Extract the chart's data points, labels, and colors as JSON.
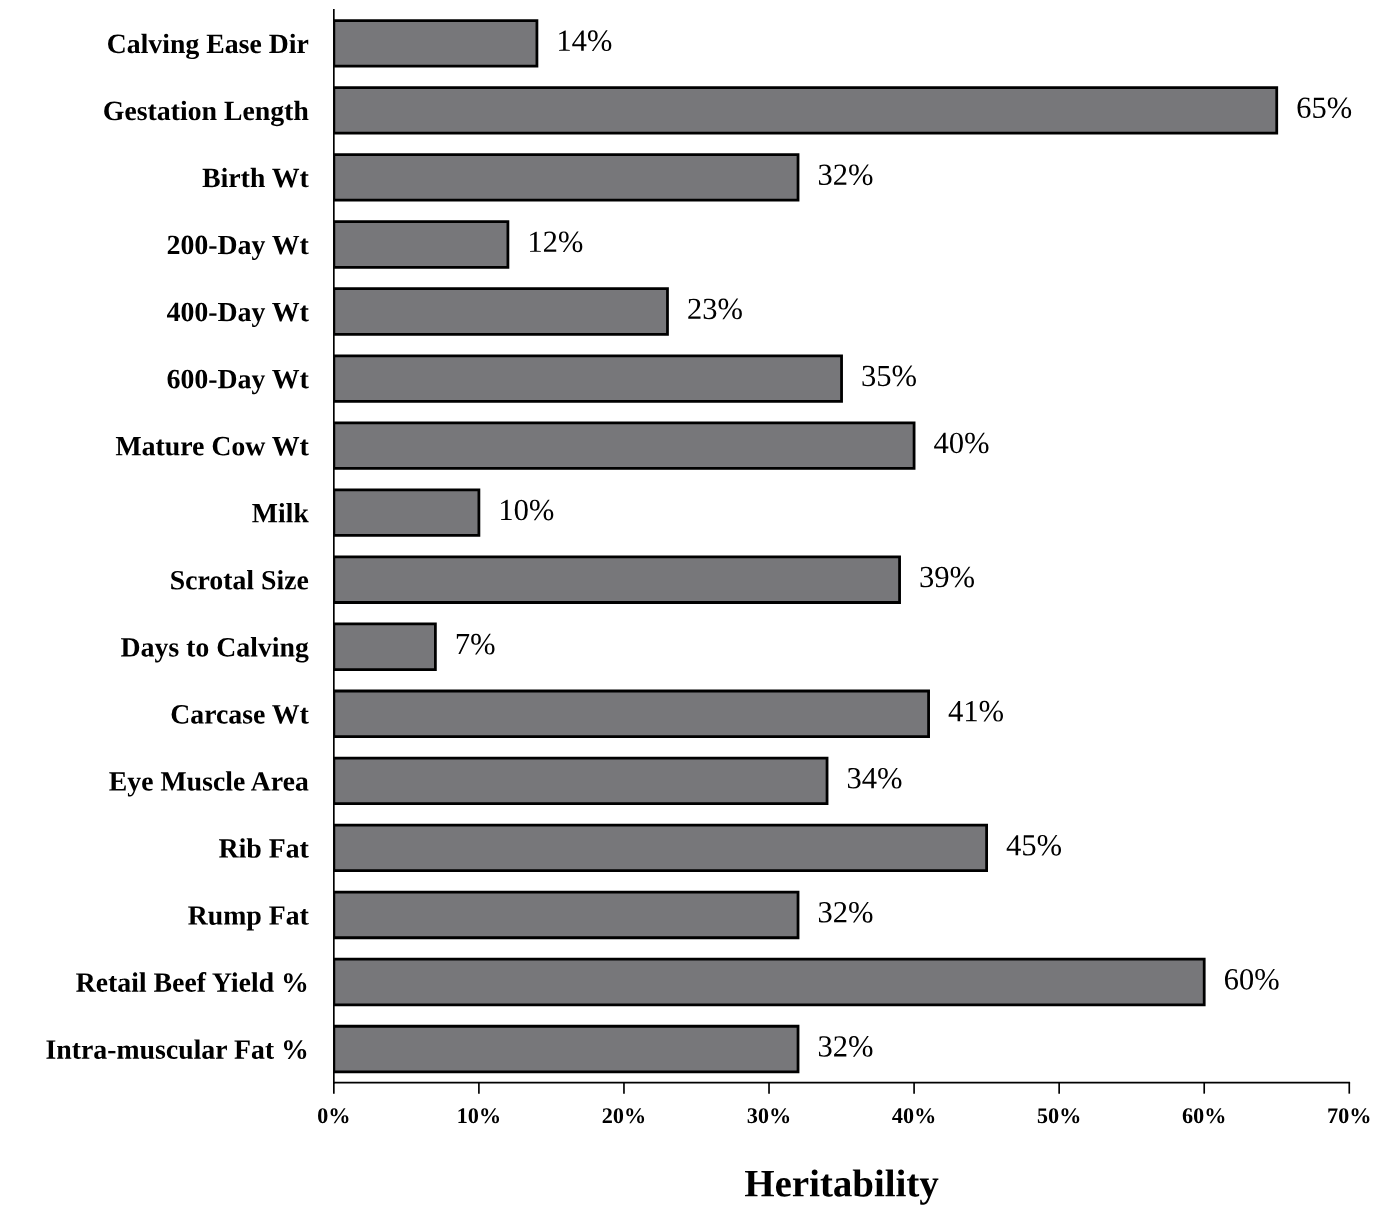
{
  "chart_data": {
    "type": "bar",
    "orientation": "horizontal",
    "xlabel": "Heritability",
    "categories": [
      "Calving Ease Dir",
      "Gestation Length",
      "Birth Wt",
      "200-Day Wt",
      "400-Day Wt",
      "600-Day Wt",
      "Mature Cow Wt",
      "Milk",
      "Scrotal Size",
      "Days to Calving",
      "Carcase Wt",
      "Eye Muscle Area",
      "Rib Fat",
      "Rump Fat",
      "Retail Beef Yield %",
      "Intra-muscular Fat %"
    ],
    "values": [
      14,
      65,
      32,
      12,
      23,
      35,
      40,
      10,
      39,
      7,
      41,
      34,
      45,
      32,
      60,
      32
    ],
    "value_labels": [
      "14%",
      "65%",
      "32%",
      "12%",
      "23%",
      "35%",
      "40%",
      "10%",
      "39%",
      "7%",
      "41%",
      "34%",
      "45%",
      "32%",
      "60%",
      "32%"
    ],
    "color": "#77777a",
    "xlim": [
      0,
      70
    ],
    "xticks": [
      {
        "value": 0,
        "label": "0%"
      },
      {
        "value": 10,
        "label": "10%"
      },
      {
        "value": 20,
        "label": "20%"
      },
      {
        "value": 30,
        "label": "30%"
      },
      {
        "value": 40,
        "label": "40%"
      },
      {
        "value": 50,
        "label": "50%"
      },
      {
        "value": 60,
        "label": "60%"
      },
      {
        "value": 70,
        "label": "70%"
      }
    ],
    "grid": false,
    "legend": false
  }
}
